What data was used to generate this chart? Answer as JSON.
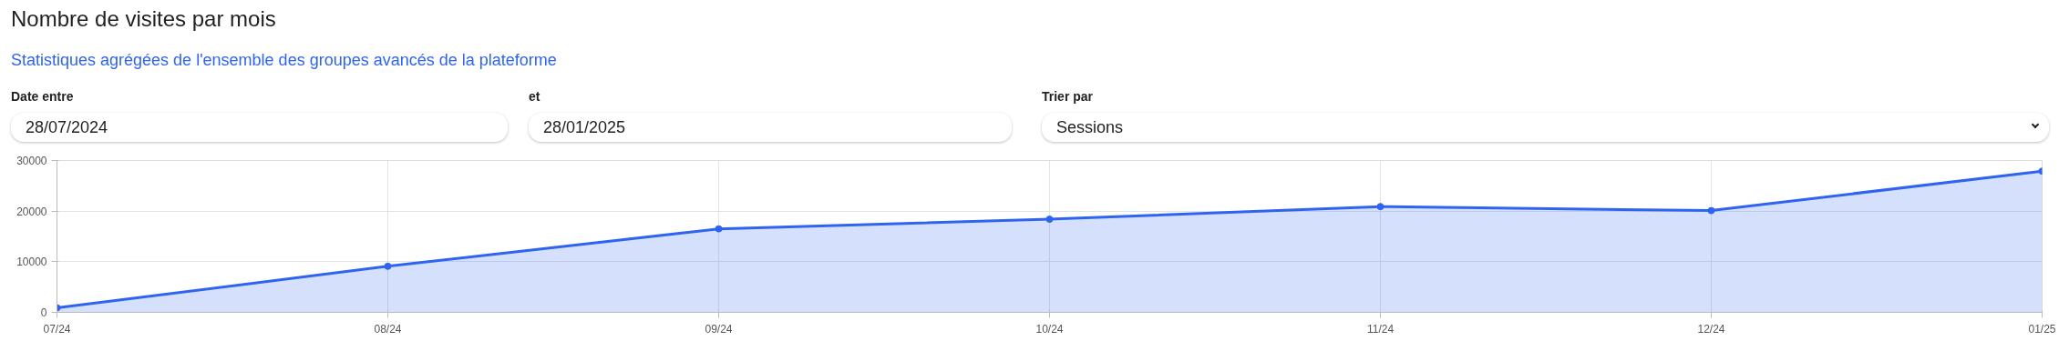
{
  "chart_data": {
    "type": "area",
    "title": "Nombre de visites par mois",
    "subtitle": "Statistiques agrégées de l'ensemble des groupes avancés de la plateforme",
    "annotations": [
      "Date entre",
      "28/07/2024",
      "et",
      "28/01/2025",
      "Trier par",
      "Sessions"
    ],
    "categories": [
      "07/24",
      "08/24",
      "09/24",
      "10/24",
      "11/24",
      "12/24",
      "01/25"
    ],
    "series": [
      {
        "color": "#2f64f0",
        "values": [
          900,
          9100,
          16500,
          18400,
          20900,
          20100,
          27900
        ]
      }
    ],
    "ylim": [
      0,
      30000
    ],
    "yticks": [
      0,
      10000,
      20000,
      30000
    ],
    "grid": true,
    "marker": "circle",
    "line_style": "solid"
  }
}
